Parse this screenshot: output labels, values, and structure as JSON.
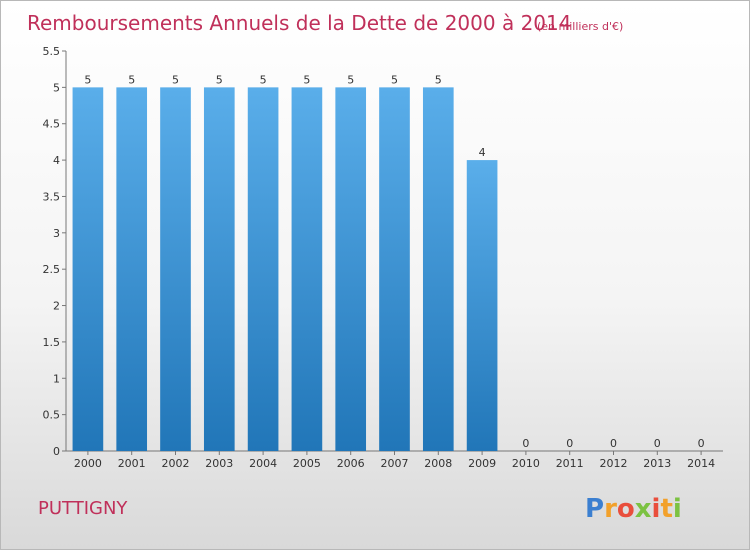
{
  "chart_data": {
    "type": "bar",
    "title": "Remboursements Annuels de la Dette de 2000 à 2014",
    "subtitle": "(en milliers d'€)",
    "categories": [
      "2000",
      "2001",
      "2002",
      "2003",
      "2004",
      "2005",
      "2006",
      "2007",
      "2008",
      "2009",
      "2010",
      "2011",
      "2012",
      "2013",
      "2014"
    ],
    "values": [
      5,
      5,
      5,
      5,
      5,
      5,
      5,
      5,
      5,
      4,
      0,
      0,
      0,
      0,
      0
    ],
    "ylim": [
      0,
      5.5
    ],
    "yticks": [
      "0",
      "0.5",
      "1",
      "1.5",
      "2",
      "2.5",
      "3",
      "3.5",
      "4",
      "4.5",
      "5",
      "5.5"
    ],
    "grid": false,
    "bar_color_top": "#5aaeea",
    "bar_color_bottom": "#2176b8"
  },
  "commune": "PUTTIGNY",
  "logo": {
    "letters": [
      "P",
      "r",
      "o",
      "x",
      "i",
      "t",
      "i"
    ],
    "colors": [
      "#3b7fd0",
      "#f2a12b",
      "#e94e3c",
      "#7cc242",
      "#e94e3c",
      "#f2a12b",
      "#7cc242"
    ]
  }
}
